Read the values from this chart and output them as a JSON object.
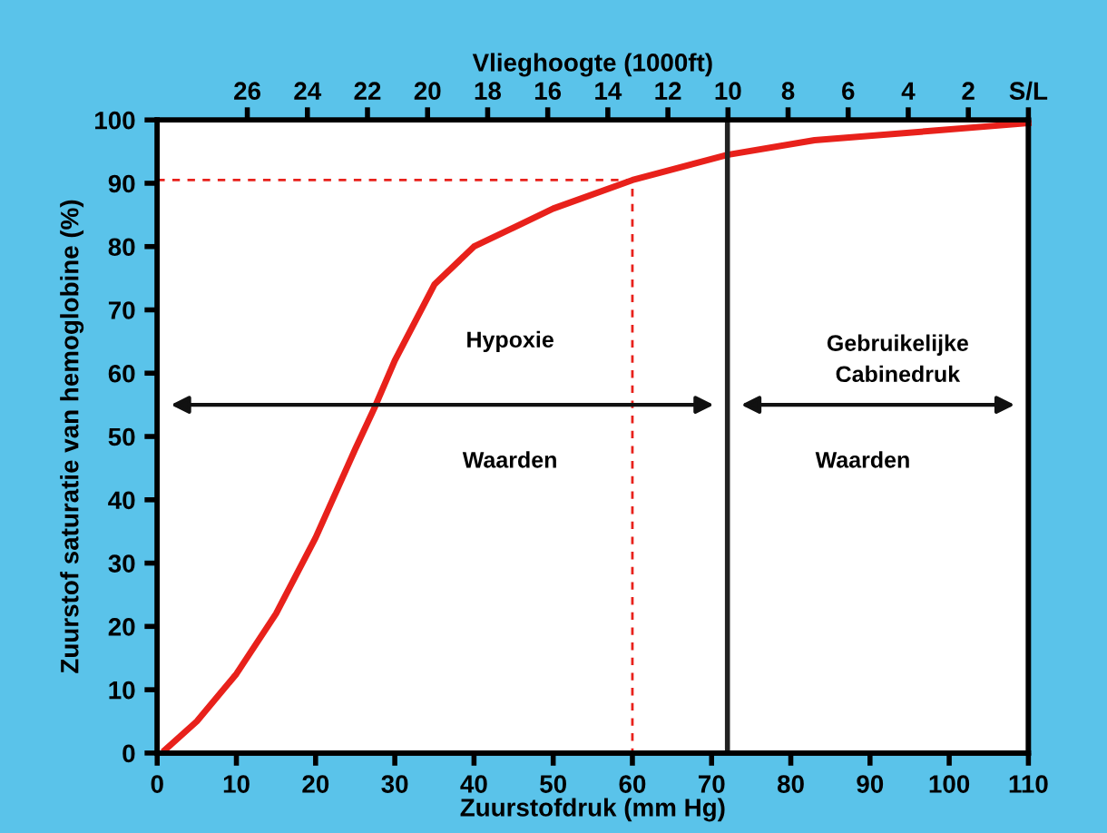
{
  "chart_data": {
    "type": "line",
    "xlabel": "Zuurstofdruk (mm Hg)",
    "ylabel": "Zuurstof saturatie van hemoglobine (%)",
    "x2label": "Vlieghoogte (1000ft)",
    "xlim": [
      0,
      110
    ],
    "xticks": [
      0,
      10,
      20,
      30,
      40,
      50,
      60,
      70,
      80,
      90,
      100,
      110
    ],
    "ylim": [
      0,
      100
    ],
    "yticks": [
      0,
      10,
      20,
      30,
      40,
      50,
      60,
      70,
      80,
      90,
      100
    ],
    "x2lim": [
      29,
      0
    ],
    "x2ticks": [
      26,
      24,
      22,
      20,
      18,
      16,
      14,
      12,
      10,
      8,
      6,
      4,
      2,
      {
        "value": 0,
        "label": "S/L"
      }
    ],
    "series": [
      {
        "color": "#e8211b",
        "x": [
          1,
          5,
          10,
          15,
          20,
          25,
          27.5,
          30,
          35,
          40,
          45,
          50,
          60,
          72,
          83,
          98,
          110
        ],
        "values": [
          0.5,
          5,
          12.5,
          22,
          34,
          48,
          54.7,
          62,
          74,
          80,
          83,
          86,
          90.5,
          94.5,
          96.8,
          98.3,
          99.5
        ]
      },
      {
        "color": "#e8211b",
        "line_style": "dashed",
        "x": [
          0,
          60,
          60
        ],
        "values": [
          90.5,
          90.5,
          0
        ]
      }
    ],
    "ref_lines": [
      {
        "axis": "x",
        "value": 72,
        "color": "#222222"
      }
    ],
    "annotations": [
      "Hypoxie",
      "Waarden",
      "Gebruikelijke\nCabinedruk",
      "Waarden"
    ],
    "grid": false,
    "legend": false
  }
}
